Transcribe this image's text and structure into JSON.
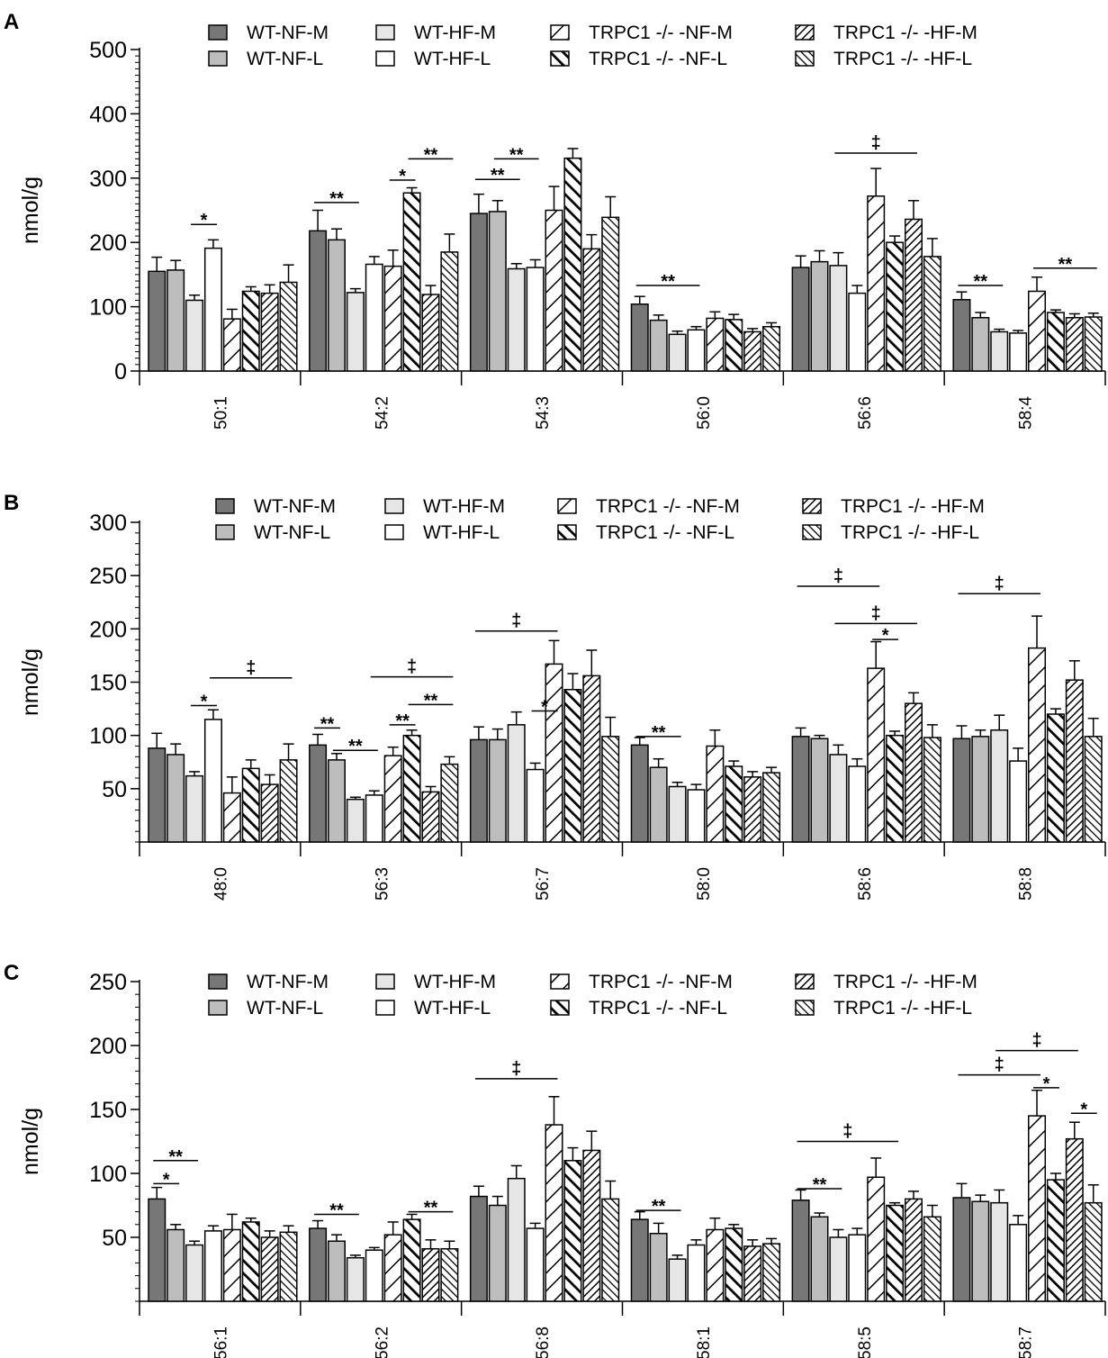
{
  "chart_data": [
    {
      "type": "bar",
      "panel": "A",
      "ylabel": "nmol/g",
      "ylim": [
        0,
        500
      ],
      "yticks": [
        0,
        100,
        200,
        300,
        400,
        500
      ],
      "categories": [
        "50:1",
        "54:2",
        "54:3",
        "56:0",
        "56:6",
        "58:4"
      ],
      "series": [
        {
          "name": "WT-NF-M",
          "values": [
            155,
            218,
            245,
            104,
            161,
            111
          ],
          "errors": [
            22,
            32,
            30,
            12,
            18,
            12
          ]
        },
        {
          "name": "WT-NF-L",
          "values": [
            157,
            204,
            248,
            79,
            170,
            83
          ],
          "errors": [
            15,
            17,
            17,
            8,
            17,
            8
          ]
        },
        {
          "name": "WT-HF-M",
          "values": [
            110,
            122,
            159,
            57,
            164,
            61
          ],
          "errors": [
            8,
            6,
            8,
            5,
            20,
            4
          ]
        },
        {
          "name": "WT-HF-L",
          "values": [
            191,
            166,
            161,
            64,
            121,
            59
          ],
          "errors": [
            13,
            12,
            12,
            5,
            12,
            4
          ]
        },
        {
          "name": "TRPC1 -/- -NF-M",
          "values": [
            81,
            163,
            250,
            82,
            272,
            124
          ],
          "errors": [
            15,
            25,
            37,
            10,
            43,
            22
          ]
        },
        {
          "name": "TRPC1 -/- -NF-L",
          "values": [
            124,
            277,
            331,
            80,
            200,
            91
          ],
          "errors": [
            7,
            8,
            15,
            8,
            10,
            4
          ]
        },
        {
          "name": "TRPC1 -/- -HF-M",
          "values": [
            121,
            119,
            190,
            61,
            236,
            83
          ],
          "errors": [
            13,
            14,
            22,
            5,
            29,
            6
          ]
        },
        {
          "name": "TRPC1 -/- -HF-L",
          "values": [
            138,
            185,
            239,
            69,
            178,
            84
          ],
          "errors": [
            27,
            28,
            32,
            6,
            28,
            6
          ]
        }
      ],
      "annotations": [
        {
          "text": "*",
          "cat": 0,
          "from": 2,
          "to": 3,
          "y": 228
        },
        {
          "text": "**",
          "cat": 1,
          "from": 0,
          "to": 2,
          "y": 262
        },
        {
          "text": "*",
          "cat": 1,
          "from": 4,
          "to": 5,
          "y": 297
        },
        {
          "text": "**",
          "cat": 1,
          "from": 5,
          "to": 7,
          "y": 330
        },
        {
          "text": "**",
          "cat": 2,
          "from": 0,
          "to": 2,
          "y": 298
        },
        {
          "text": "**",
          "cat": 2,
          "from": 1,
          "to": 3,
          "y": 330
        },
        {
          "text": "**",
          "cat": 3,
          "from": 0,
          "to": 3,
          "y": 133
        },
        {
          "text": "‡",
          "cat": 4,
          "from": 2,
          "to": 6,
          "y": 339
        },
        {
          "text": "**",
          "cat": 5,
          "from": 0,
          "to": 2,
          "y": 133
        },
        {
          "text": "**",
          "cat": 5,
          "from": 4,
          "to": 7,
          "y": 160
        }
      ]
    },
    {
      "type": "bar",
      "panel": "B",
      "ylabel": "nmol/g",
      "ylim": [
        0,
        300
      ],
      "yticks": [
        50,
        100,
        150,
        200,
        250,
        300
      ],
      "categories": [
        "48:0",
        "56:3",
        "56:7",
        "58:0",
        "58:6",
        "58:8"
      ],
      "series": [
        {
          "name": "WT-NF-M",
          "values": [
            88,
            91,
            96,
            91,
            99,
            97
          ],
          "errors": [
            14,
            10,
            12,
            7,
            8,
            12
          ]
        },
        {
          "name": "WT-NF-L",
          "values": [
            82,
            77,
            96,
            70,
            97,
            99
          ],
          "errors": [
            10,
            6,
            10,
            8,
            3,
            6
          ]
        },
        {
          "name": "WT-HF-M",
          "values": [
            62,
            40,
            110,
            52,
            82,
            105
          ],
          "errors": [
            4,
            2,
            12,
            4,
            9,
            14
          ]
        },
        {
          "name": "WT-HF-L",
          "values": [
            115,
            44,
            68,
            49,
            71,
            76
          ],
          "errors": [
            9,
            4,
            6,
            5,
            7,
            12
          ]
        },
        {
          "name": "TRPC1 -/- -NF-M",
          "values": [
            46,
            81,
            167,
            90,
            163,
            182
          ],
          "errors": [
            15,
            8,
            22,
            15,
            25,
            30
          ]
        },
        {
          "name": "TRPC1 -/- -NF-L",
          "values": [
            69,
            100,
            143,
            71,
            100,
            120
          ],
          "errors": [
            8,
            5,
            15,
            5,
            4,
            5
          ]
        },
        {
          "name": "TRPC1 -/- -HF-M",
          "values": [
            54,
            47,
            156,
            61,
            130,
            152
          ],
          "errors": [
            9,
            5,
            24,
            5,
            10,
            18
          ]
        },
        {
          "name": "TRPC1 -/- -HF-L",
          "values": [
            77,
            73,
            99,
            65,
            98,
            99
          ],
          "errors": [
            15,
            7,
            18,
            5,
            12,
            17
          ]
        }
      ],
      "annotations": [
        {
          "text": "*",
          "cat": 0,
          "from": 2,
          "to": 3,
          "y": 128
        },
        {
          "text": "‡",
          "cat": 0,
          "from": 3,
          "to": 7,
          "y": 154
        },
        {
          "text": "**",
          "cat": 1,
          "from": 0,
          "to": 1,
          "y": 107
        },
        {
          "text": "**",
          "cat": 1,
          "from": 1,
          "to": 3,
          "y": 86
        },
        {
          "text": "**",
          "cat": 1,
          "from": 4,
          "to": 5,
          "y": 110
        },
        {
          "text": "**",
          "cat": 1,
          "from": 5,
          "to": 7,
          "y": 129
        },
        {
          "text": "‡",
          "cat": 1,
          "from": 3,
          "to": 7,
          "y": 155
        },
        {
          "text": "*",
          "cat": 2,
          "from": 3,
          "to": 4,
          "y": 123
        },
        {
          "text": "‡",
          "cat": 2,
          "from": 0,
          "to": 4,
          "y": 198
        },
        {
          "text": "**",
          "cat": 3,
          "from": 0,
          "to": 2,
          "y": 99
        },
        {
          "text": "‡",
          "cat": 4,
          "from": 0,
          "to": 4,
          "y": 240
        },
        {
          "text": "‡",
          "cat": 4,
          "from": 2,
          "to": 6,
          "y": 205
        },
        {
          "text": "*",
          "cat": 4,
          "from": 4,
          "to": 5,
          "y": 190
        },
        {
          "text": "‡",
          "cat": 5,
          "from": 0,
          "to": 4,
          "y": 233
        }
      ]
    },
    {
      "type": "bar",
      "panel": "C",
      "ylabel": "nmol/g",
      "ylim": [
        0,
        250
      ],
      "yticks": [
        50,
        100,
        150,
        200,
        250
      ],
      "categories": [
        "56:1",
        "56:2",
        "56:8",
        "58:1",
        "58:5",
        "58:7"
      ],
      "series": [
        {
          "name": "WT-NF-M",
          "values": [
            80,
            57,
            82,
            64,
            79,
            81
          ],
          "errors": [
            9,
            6,
            8,
            6,
            8,
            11
          ]
        },
        {
          "name": "WT-NF-L",
          "values": [
            56,
            47,
            75,
            53,
            66,
            78
          ],
          "errors": [
            4,
            5,
            7,
            8,
            3,
            5
          ]
        },
        {
          "name": "WT-HF-M",
          "values": [
            44,
            34,
            96,
            33,
            50,
            77
          ],
          "errors": [
            3,
            2,
            10,
            3,
            6,
            10
          ]
        },
        {
          "name": "WT-HF-L",
          "values": [
            55,
            40,
            57,
            44,
            52,
            60
          ],
          "errors": [
            4,
            2,
            4,
            4,
            5,
            7
          ]
        },
        {
          "name": "TRPC1 -/- -NF-M",
          "values": [
            56,
            52,
            138,
            56,
            97,
            145
          ],
          "errors": [
            12,
            10,
            22,
            9,
            15,
            20
          ]
        },
        {
          "name": "TRPC1 -/- -NF-L",
          "values": [
            62,
            64,
            110,
            57,
            75,
            95
          ],
          "errors": [
            3,
            4,
            10,
            3,
            2,
            5
          ]
        },
        {
          "name": "TRPC1 -/- -HF-M",
          "values": [
            50,
            41,
            118,
            43,
            80,
            127
          ],
          "errors": [
            5,
            7,
            15,
            5,
            6,
            13
          ]
        },
        {
          "name": "TRPC1 -/- -HF-L",
          "values": [
            54,
            41,
            80,
            45,
            66,
            77
          ],
          "errors": [
            5,
            6,
            14,
            4,
            9,
            14
          ]
        }
      ],
      "annotations": [
        {
          "text": "*",
          "cat": 0,
          "from": 0,
          "to": 1,
          "y": 92
        },
        {
          "text": "**",
          "cat": 0,
          "from": 0,
          "to": 2,
          "y": 110
        },
        {
          "text": "**",
          "cat": 1,
          "from": 0,
          "to": 2,
          "y": 68
        },
        {
          "text": "**",
          "cat": 1,
          "from": 5,
          "to": 7,
          "y": 70
        },
        {
          "text": "‡",
          "cat": 2,
          "from": 0,
          "to": 4,
          "y": 174
        },
        {
          "text": "**",
          "cat": 3,
          "from": 0,
          "to": 2,
          "y": 71
        },
        {
          "text": "**",
          "cat": 4,
          "from": 0,
          "to": 2,
          "y": 88
        },
        {
          "text": "‡",
          "cat": 4,
          "from": 0,
          "to": 5,
          "y": 125
        },
        {
          "text": "‡",
          "cat": 5,
          "from": 0,
          "to": 4,
          "y": 177
        },
        {
          "text": "‡",
          "cat": 5,
          "from": 2,
          "to": 6,
          "y": 196
        },
        {
          "text": "*",
          "cat": 5,
          "from": 4,
          "to": 5,
          "y": 167
        },
        {
          "text": "*",
          "cat": 5,
          "from": 6,
          "to": 7,
          "y": 147
        }
      ]
    }
  ]
}
